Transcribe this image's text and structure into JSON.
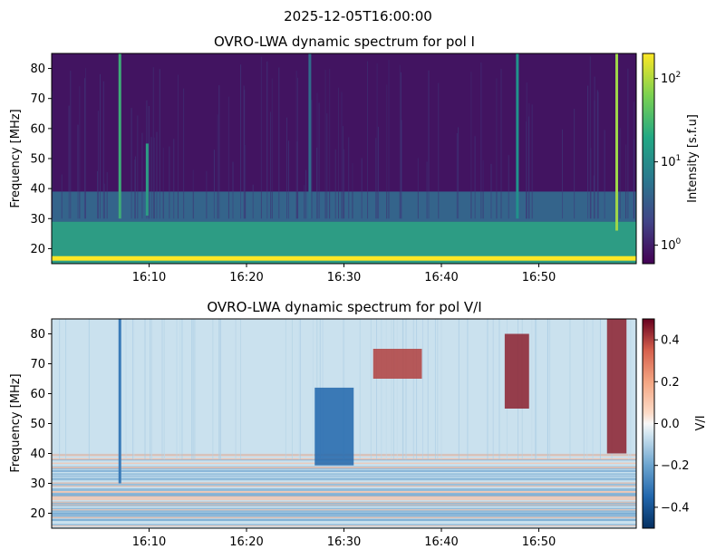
{
  "figure": {
    "suptitle": "2025-12-05T16:00:00"
  },
  "chart_data": [
    {
      "type": "heatmap",
      "title": "OVRO-LWA dynamic spectrum for pol I",
      "xlabel": "",
      "ylabel": "Frequency [MHz]",
      "x_range_minutes": [
        0,
        60
      ],
      "x_tick_minutes": [
        10,
        20,
        30,
        40,
        50
      ],
      "x_tick_labels": [
        "16:10",
        "16:20",
        "16:30",
        "16:40",
        "16:50"
      ],
      "ylim": [
        15,
        85
      ],
      "y_ticks": [
        "20",
        "30",
        "40",
        "50",
        "60",
        "70",
        "80"
      ],
      "colormap": "viridis",
      "color_scale": "log",
      "colorbar": {
        "label": "Intensity [s.f.u]",
        "range": [
          0.6,
          200
        ],
        "tick_values": [
          1,
          10,
          100
        ],
        "tick_labels": [
          "10^0",
          "10^1",
          "10^2"
        ]
      },
      "features": [
        {
          "kind": "band",
          "desc": "bright continuum band",
          "freq_range": [
            15,
            29
          ],
          "level": 0.55
        },
        {
          "kind": "band",
          "desc": "saturated band",
          "freq_range": [
            16,
            17.5
          ],
          "level": 1.0
        },
        {
          "kind": "band",
          "desc": "moderate band",
          "freq_range": [
            29,
            39
          ],
          "level": 0.32
        },
        {
          "kind": "burst",
          "time_min": 7.0,
          "freq_range": [
            30,
            85
          ],
          "level": 0.62
        },
        {
          "kind": "burst",
          "time_min": 9.8,
          "freq_range": [
            31,
            55
          ],
          "level": 0.55
        },
        {
          "kind": "burst",
          "time_min": 26.5,
          "freq_range": [
            30,
            85
          ],
          "level": 0.35
        },
        {
          "kind": "burst",
          "time_min": 47.8,
          "freq_range": [
            30,
            85
          ],
          "level": 0.5
        },
        {
          "kind": "burst",
          "time_min": 58.0,
          "freq_range": [
            26,
            85
          ],
          "level": 0.85
        }
      ]
    },
    {
      "type": "heatmap",
      "title": "OVRO-LWA dynamic spectrum for pol V/I",
      "xlabel": "",
      "ylabel": "Frequency [MHz]",
      "x_range_minutes": [
        0,
        60
      ],
      "x_tick_minutes": [
        10,
        20,
        30,
        40,
        50
      ],
      "x_tick_labels": [
        "16:10",
        "16:20",
        "16:30",
        "16:40",
        "16:50"
      ],
      "ylim": [
        15,
        85
      ],
      "y_ticks": [
        "20",
        "30",
        "40",
        "50",
        "60",
        "70",
        "80"
      ],
      "colormap": "RdBu_r",
      "color_scale": "linear",
      "colorbar": {
        "label": "V/I",
        "range": [
          -0.5,
          0.5
        ],
        "tick_values": [
          0.4,
          0.2,
          0.0,
          -0.2,
          -0.4
        ],
        "tick_labels": [
          "0.4",
          "0.2",
          "0.0",
          "−0.2",
          "−0.4"
        ]
      },
      "features": [
        {
          "kind": "patch",
          "desc": "blue drifting feature",
          "time_range": [
            27,
            31
          ],
          "freq_range": [
            36,
            62
          ],
          "value": -0.35
        },
        {
          "kind": "patch",
          "desc": "red spikes",
          "time_range": [
            33,
            38
          ],
          "freq_range": [
            65,
            75
          ],
          "value": 0.4
        },
        {
          "kind": "patch",
          "desc": "red burst",
          "time_range": [
            46.5,
            49
          ],
          "freq_range": [
            55,
            80
          ],
          "value": 0.45
        },
        {
          "kind": "patch",
          "desc": "red burst",
          "time_range": [
            57,
            59
          ],
          "freq_range": [
            40,
            85
          ],
          "value": 0.45
        },
        {
          "kind": "line",
          "time_min": 7.0,
          "freq_range": [
            30,
            85
          ],
          "value": -0.3
        }
      ]
    }
  ]
}
